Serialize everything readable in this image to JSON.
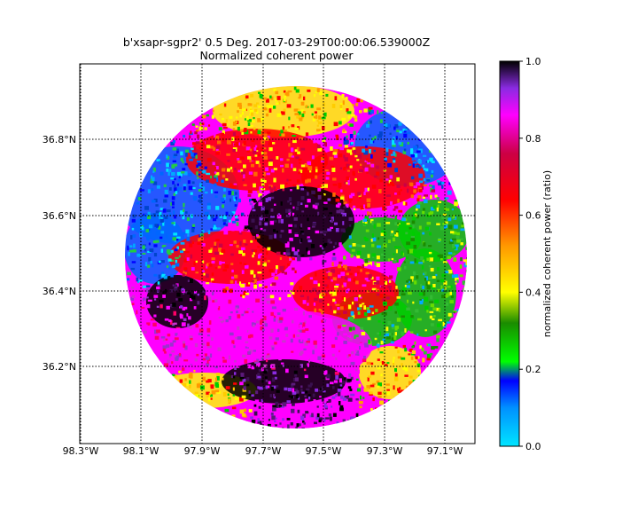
{
  "title_line1": "b'xsapr-sgpr2' 0.5 Deg. 2017-03-29T00:00:06.539000Z",
  "title_line2": "Normalized coherent power",
  "map": {
    "lon_ticks": [
      "98.3°W",
      "98.1°W",
      "97.9°W",
      "97.7°W",
      "97.5°W",
      "97.3°W",
      "97.1°W"
    ],
    "lat_ticks": [
      "36.8°N",
      "36.6°N",
      "36.4°N",
      "36.2°N"
    ],
    "gridlines": "dotted",
    "lon_range": [
      -98.3,
      -97.02
    ],
    "lat_range": [
      36.0,
      37.0
    ]
  },
  "colorbar": {
    "label": "normalized coherent power (ratio)",
    "ticks": [
      "0.0",
      "0.2",
      "0.4",
      "0.6",
      "0.8",
      "1.0"
    ],
    "range": [
      0.0,
      1.0
    ],
    "colors": [
      "#00e5ff",
      "#0000ff",
      "#00ff00",
      "#1a8c00",
      "#ffff00",
      "#ff8c00",
      "#ff0000",
      "#cc0044",
      "#ff00ff",
      "#9933cc",
      "#000000"
    ]
  }
}
